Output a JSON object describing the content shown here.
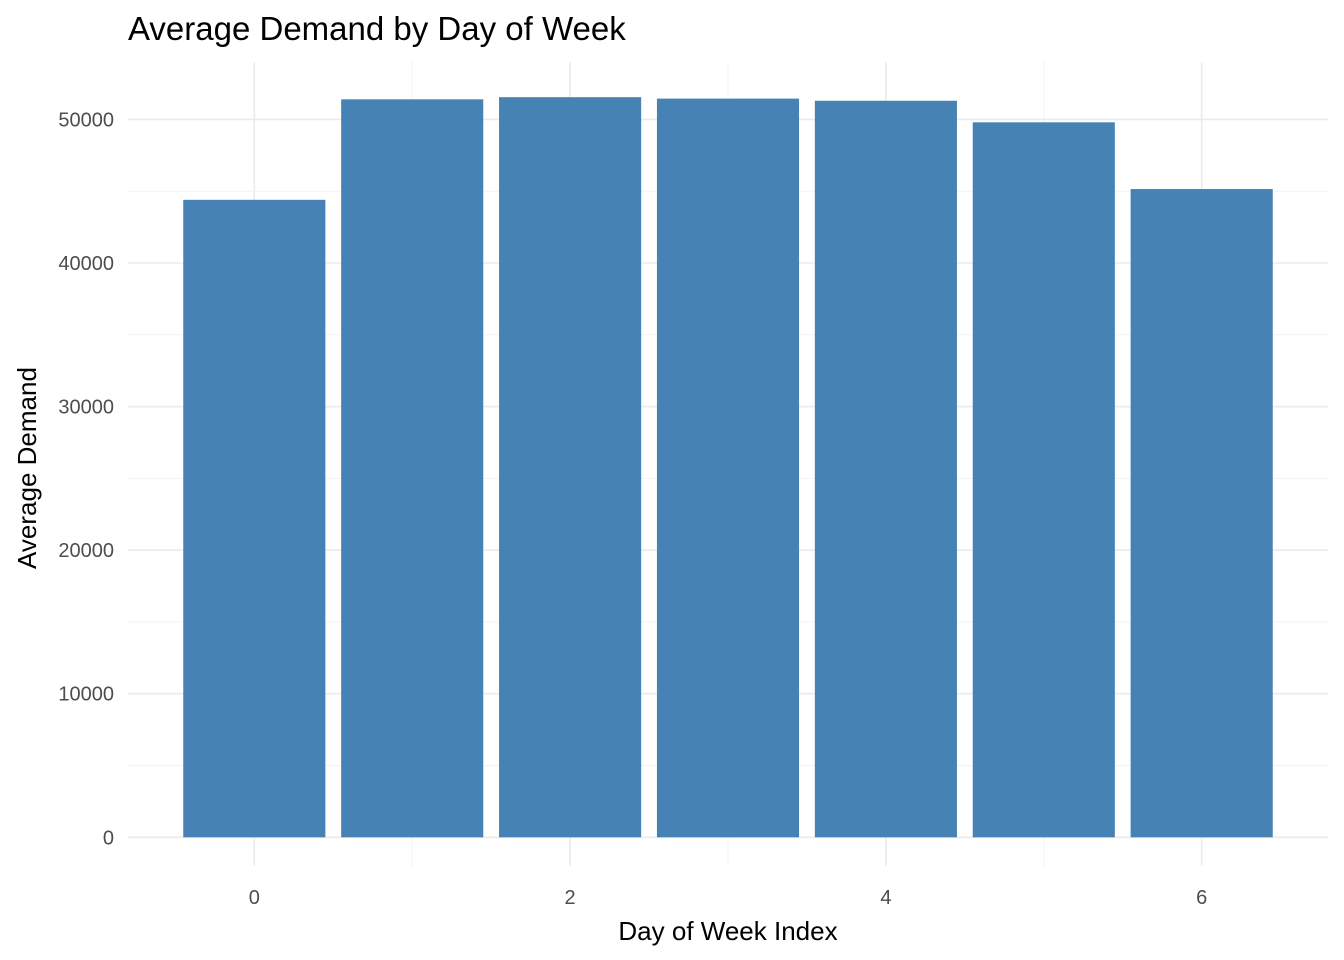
{
  "chart_data": {
    "type": "bar",
    "title": "Average Demand by Day of Week",
    "xlabel": "Day of Week Index",
    "ylabel": "Average Demand",
    "categories": [
      0,
      1,
      2,
      3,
      4,
      5,
      6
    ],
    "values": [
      44400,
      51400,
      51550,
      51450,
      51300,
      49800,
      45150
    ],
    "xlim": [
      -0.8,
      6.8
    ],
    "ylim": [
      -2000,
      54000
    ],
    "x_ticks": [
      "0",
      "2",
      "4",
      "6"
    ],
    "x_tick_values": [
      0,
      2,
      4,
      6
    ],
    "y_ticks": [
      "0",
      "10000",
      "20000",
      "30000",
      "40000",
      "50000"
    ],
    "y_tick_values": [
      0,
      10000,
      20000,
      30000,
      40000,
      50000
    ],
    "bar_color": "#4682B4",
    "grid": true,
    "legend": "none"
  }
}
